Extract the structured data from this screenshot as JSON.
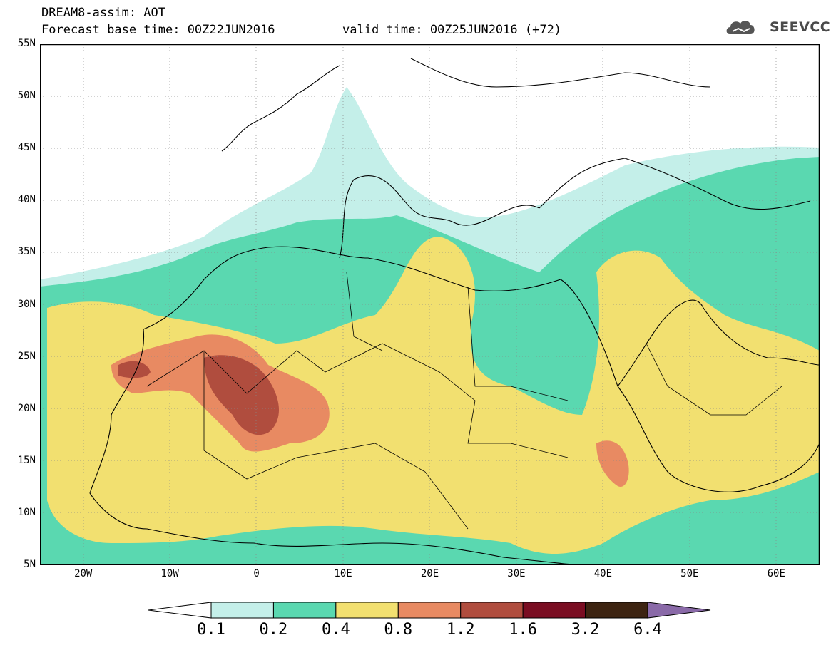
{
  "header": {
    "line1": "DREAM8-assim: AOT",
    "line2_left": "Forecast base time: 00Z22JUN2016",
    "line2_right": "valid time: 00Z25JUN2016 (+72)",
    "logo_text": "SEEVCCC"
  },
  "map": {
    "lat_labels": [
      "55N",
      "50N",
      "45N",
      "40N",
      "35N",
      "30N",
      "25N",
      "20N",
      "15N",
      "10N",
      "5N"
    ],
    "lon_labels": [
      "20W",
      "10W",
      "0",
      "10E",
      "20E",
      "30E",
      "40E",
      "50E",
      "60E"
    ],
    "extent": {
      "lon_min": -25,
      "lon_max": 65,
      "lat_min": 5,
      "lat_max": 55
    },
    "colors": {
      "land_outline": "#000000",
      "ocean": "#ffffff"
    }
  },
  "colorbar": {
    "labels": [
      "0.1",
      "0.2",
      "0.4",
      "0.8",
      "1.2",
      "1.6",
      "3.2",
      "6.4"
    ],
    "colors": [
      "#ffffff",
      "#c4efe9",
      "#5ad8b0",
      "#f2e070",
      "#e88a62",
      "#b04d3e",
      "#7a0d22",
      "#3d2411",
      "#8a6aa8"
    ]
  }
}
